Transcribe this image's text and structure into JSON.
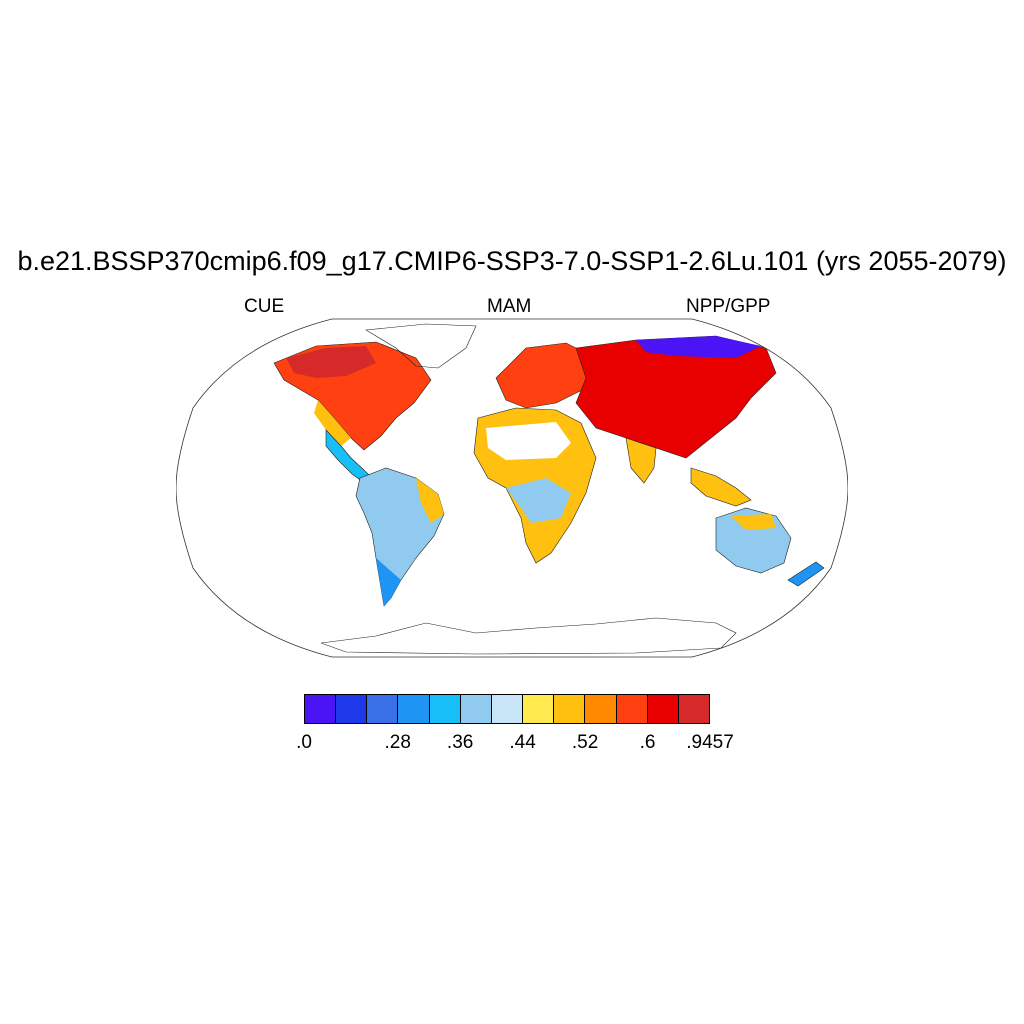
{
  "title": "b.e21.BSSP370cmip6.f09_g17.CMIP6-SSP3-7.0-SSP1-2.6Lu.101 (yrs 2055-2079)",
  "subtitle_left": "CUE",
  "subtitle_center": "MAM",
  "subtitle_right": "NPP/GPP",
  "colorbar": {
    "colors": [
      "#4a14f5",
      "#1f38ea",
      "#3a70e8",
      "#1e95f5",
      "#18bef8",
      "#90caee",
      "#c8e6f8",
      "#ffea4f",
      "#ffc010",
      "#ff8a00",
      "#ff4010",
      "#e80000",
      "#d62a2a"
    ],
    "tick_labels": [
      ".0",
      ".28",
      ".36",
      ".44",
      ".52",
      ".6",
      ".9457"
    ],
    "tick_boundary_index": [
      0,
      3,
      5,
      7,
      9,
      11,
      13
    ]
  },
  "map": {
    "projection": "Robinson",
    "variable": "CUE",
    "range": [
      0.0,
      0.9457
    ]
  }
}
